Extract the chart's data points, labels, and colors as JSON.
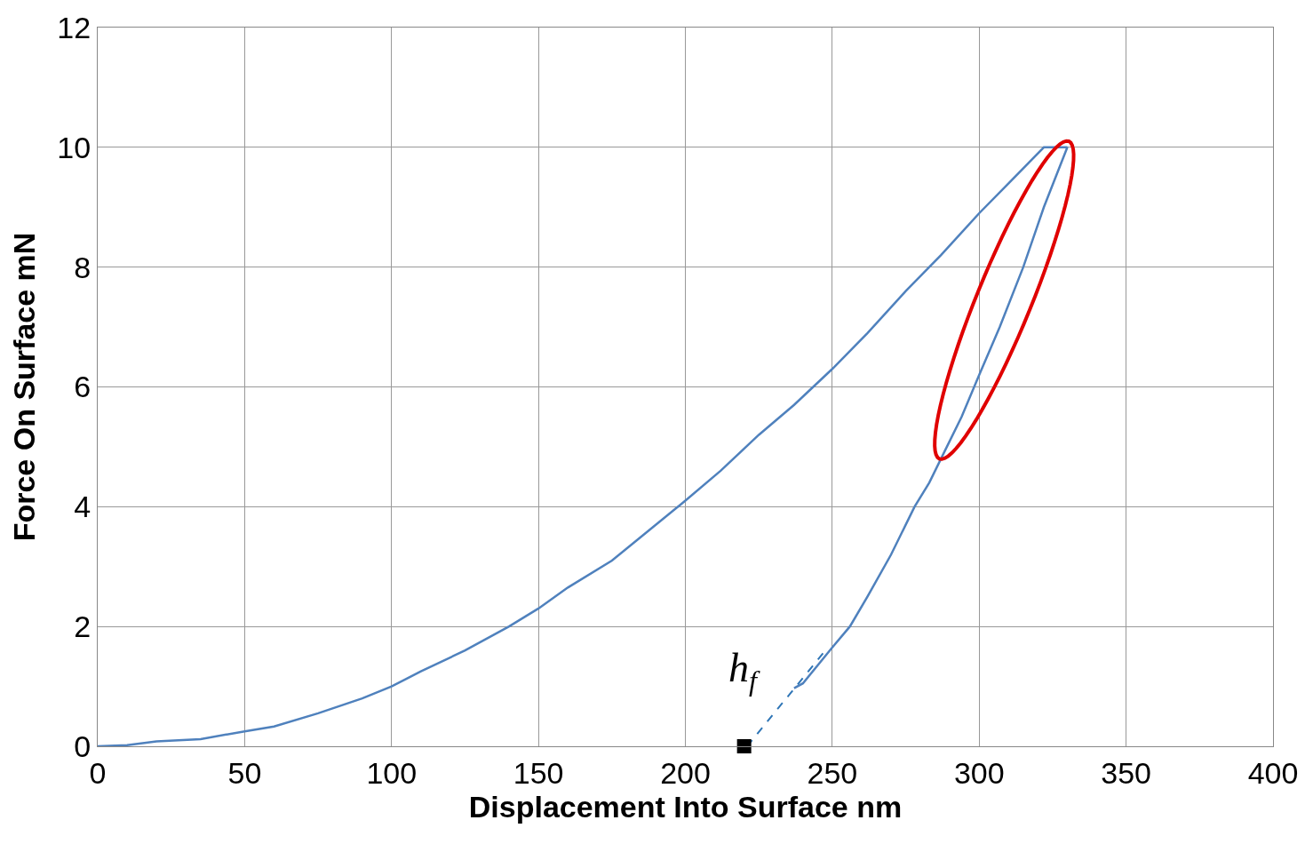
{
  "chart_data": {
    "type": "line",
    "xlabel": "Displacement Into Surface nm",
    "ylabel": "Force On Surface mN",
    "xlim": [
      0,
      400
    ],
    "xticks": [
      0,
      50,
      100,
      150,
      200,
      250,
      300,
      350,
      400
    ],
    "ylim": [
      0,
      12
    ],
    "yticks": [
      0,
      2,
      4,
      6,
      8,
      10,
      12
    ],
    "grid": true,
    "marker": "none",
    "series": [
      {
        "color": "#4f81bd",
        "line_style": "solid",
        "x": [
          0,
          10,
          20,
          35,
          50,
          60,
          75,
          90,
          100,
          110,
          125,
          140,
          150,
          160,
          175,
          185,
          200,
          212,
          225,
          237,
          250,
          262,
          275,
          287,
          300,
          310,
          322,
          330
        ],
        "values": [
          0,
          0.02,
          0.08,
          0.12,
          0.25,
          0.33,
          0.55,
          0.8,
          1.0,
          1.25,
          1.6,
          2.0,
          2.3,
          2.65,
          3.1,
          3.5,
          4.1,
          4.6,
          5.2,
          5.7,
          6.3,
          6.9,
          7.6,
          8.2,
          8.9,
          9.4,
          10.0,
          10.0
        ]
      },
      {
        "color": "#4f81bd",
        "line_style": "solid",
        "x": [
          330,
          322,
          315,
          307,
          300,
          294,
          288,
          283,
          278,
          270,
          262,
          256,
          250,
          245,
          240,
          237
        ],
        "values": [
          10,
          9,
          8,
          7,
          6.2,
          5.5,
          4.9,
          4.4,
          4,
          3.2,
          2.5,
          2,
          1.65,
          1.35,
          1.05,
          0.97
        ]
      },
      {
        "color": "#2e75b6",
        "line_style": "dashed",
        "x": [
          221,
          247
        ],
        "values": [
          0,
          1.56
        ]
      },
      {
        "type": "scatter",
        "color": "#000000",
        "marker": "square",
        "x": [
          220
        ],
        "values": [
          0
        ]
      }
    ],
    "annotations": [
      {
        "text": "h$_{f}$",
        "x": 220,
        "y": 0
      }
    ]
  }
}
